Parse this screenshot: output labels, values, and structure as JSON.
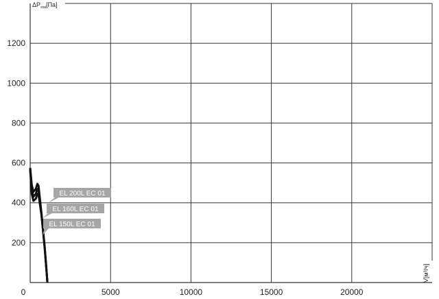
{
  "chart_data": {
    "type": "line",
    "title": "",
    "ylabel": "ΔP",
    "ylabel_sub": "stat",
    "ylabel_unit": "[Па]",
    "xlabel": "V[м³/ч]",
    "xlim": [
      0,
      25000
    ],
    "ylim": [
      0,
      1400
    ],
    "xticks": [
      0,
      5000,
      10000,
      15000,
      20000
    ],
    "yticks": [
      200,
      400,
      600,
      800,
      1000,
      1200
    ],
    "grid": true,
    "legend": "inline labels",
    "colors": {
      "curve": "#111111",
      "label_bg": "#a6a6a6",
      "grid": "#333333"
    },
    "series": [
      {
        "name": "EL 200L EC 01",
        "x": [
          0,
          100,
          200,
          350,
          450,
          520,
          700,
          900,
          1000,
          1070
        ],
        "y": [
          575,
          490,
          455,
          470,
          495,
          485,
          350,
          180,
          80,
          0
        ]
      },
      {
        "name": "EL 160L EC 01",
        "x": [
          0,
          100,
          200,
          350,
          450,
          520,
          700,
          900,
          1000,
          1070
        ],
        "y": [
          570,
          470,
          430,
          445,
          470,
          460,
          345,
          178,
          78,
          0
        ]
      },
      {
        "name": "EL 150L EC 01",
        "x": [
          0,
          100,
          200,
          350,
          450,
          520,
          700,
          900,
          1000,
          1070
        ],
        "y": [
          565,
          445,
          410,
          420,
          445,
          440,
          340,
          175,
          75,
          0
        ]
      }
    ]
  }
}
